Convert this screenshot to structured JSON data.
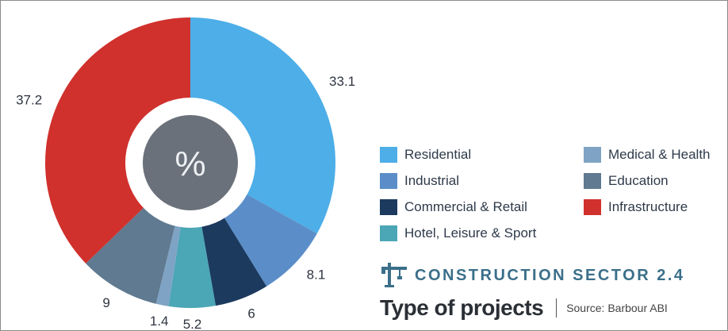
{
  "chart_data": {
    "type": "pie",
    "center_label": "%",
    "slices": [
      {
        "label": "Residential",
        "value": 33.1,
        "color": "#4daee8"
      },
      {
        "label": "Industrial",
        "value": 8.1,
        "color": "#5b8ec8"
      },
      {
        "label": "Commercial & Retail",
        "value": 6,
        "color": "#1b3a5e"
      },
      {
        "label": "Hotel, Leisure & Sport",
        "value": 5.2,
        "color": "#4ba6b5"
      },
      {
        "label": "Medical & Health",
        "value": 1.4,
        "color": "#7fa3c4"
      },
      {
        "label": "Education",
        "value": 9,
        "color": "#5f7a91"
      },
      {
        "label": "Infrastructure",
        "value": 37.2,
        "color": "#d0312d"
      }
    ],
    "legend_placement": "right"
  },
  "legend": {
    "items": [
      {
        "label": "Residential",
        "color": "#4daee8"
      },
      {
        "label": "Industrial",
        "color": "#5b8ec8"
      },
      {
        "label": "Commercial & Retail",
        "color": "#1b3a5e"
      },
      {
        "label": "Hotel, Leisure & Sport",
        "color": "#4ba6b5"
      },
      {
        "label": "Medical & Health",
        "color": "#7fa3c4"
      },
      {
        "label": "Education",
        "color": "#5f7a91"
      },
      {
        "label": "Infrastructure",
        "color": "#d0312d"
      }
    ]
  },
  "header": {
    "sector": "CONSTRUCTION SECTOR 2.4",
    "title": "Type of projects",
    "source": "Source: Barbour ABI"
  },
  "colors": {
    "center_disc": "#6b717a",
    "accent_teal": "#3b6f8a"
  },
  "icons": {
    "sector_icon": "crane-icon"
  }
}
